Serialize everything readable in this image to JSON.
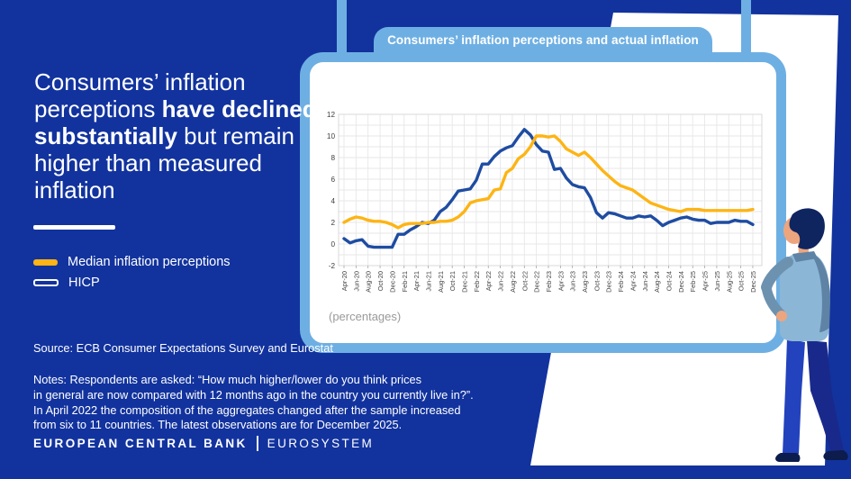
{
  "style_colors": {
    "background": "#12339E",
    "accent_light_blue": "#6EAFE3",
    "line_yellow": "#FDB414",
    "line_blue": "#1E4CA1"
  },
  "left_panel": {
    "heading": {
      "segments": [
        {
          "text": "Consumers’ inflation perceptions ",
          "bold": false
        },
        {
          "text": "have declined substantially",
          "bold": true
        },
        {
          "text": " but remain higher than measured inflation",
          "bold": false
        }
      ]
    },
    "legend": {
      "items": [
        {
          "label": "Median inflation perceptions",
          "swatch": "yellow-filled"
        },
        {
          "label": "HICP",
          "swatch": "white-outline"
        }
      ]
    },
    "source": "Source: ECB Consumer Expectations Survey and Eurostat",
    "notes_lines": [
      "Notes: Respondents are asked: “How much higher/lower do you think prices",
      "in general are now compared with 12 months ago in the country you currently live in?”.",
      "In April 2022 the composition of the aggregates changed after the sample increased",
      "from six to 11 countries. The latest observations are for December 2025."
    ],
    "footer": {
      "org": "EUROPEAN CENTRAL BANK",
      "system": "EUROSYSTEM"
    }
  },
  "chart_card": {
    "title": "Consumers’ inflation perceptions and actual inflation"
  },
  "chart_data": {
    "type": "line",
    "title": "Consumers’ inflation perceptions and actual inflation",
    "unit_note": "(percentages)",
    "x_start": "Apr-20",
    "x_end": "Dec-25",
    "x_frequency": "monthly",
    "categories": [
      "Apr-20",
      "Jun-20",
      "Aug-20",
      "Oct-20",
      "Dec-20",
      "Feb-21",
      "Apr-21",
      "Jun-21",
      "Aug-21",
      "Oct-21",
      "Dec-21",
      "Feb-22",
      "Apr-22",
      "Jun-22",
      "Aug-22",
      "Oct-22",
      "Dec-22",
      "Feb-23",
      "Apr-23",
      "Jun-23",
      "Aug-23",
      "Oct-23",
      "Dec-23",
      "Feb-24",
      "Apr-24",
      "Jun-24",
      "Aug-24",
      "Oct-24",
      "Dec-24",
      "Feb-25",
      "Apr-25",
      "Jun-25",
      "Aug-25",
      "Oct-25",
      "Dec-25"
    ],
    "ylim": [
      -2,
      12
    ],
    "yticks": [
      -2,
      0,
      2,
      4,
      6,
      8,
      10,
      12
    ],
    "grid": true,
    "legend_position": "left-panel",
    "series": [
      {
        "name": "HICP",
        "color": "#1E4CA1",
        "values": [
          0.5,
          0.1,
          0.3,
          0.4,
          -0.2,
          -0.3,
          -0.3,
          -0.3,
          -0.3,
          0.9,
          0.9,
          1.3,
          1.6,
          2.0,
          1.9,
          2.2,
          3.0,
          3.4,
          4.1,
          4.9,
          5.0,
          5.1,
          5.9,
          7.4,
          7.4,
          8.1,
          8.6,
          8.9,
          9.1,
          9.9,
          10.6,
          10.1,
          9.2,
          8.6,
          8.5,
          6.9,
          7.0,
          6.1,
          5.5,
          5.3,
          5.2,
          4.3,
          2.9,
          2.4,
          2.9,
          2.8,
          2.6,
          2.4,
          2.4,
          2.6,
          2.5,
          2.6,
          2.2,
          1.7,
          2.0,
          2.2,
          2.4,
          2.5,
          2.3,
          2.2,
          2.2,
          1.9,
          2.0,
          2.0,
          2.0,
          2.2,
          2.1,
          2.1,
          1.8
        ]
      },
      {
        "name": "Median inflation perceptions",
        "color": "#FDB414",
        "values": [
          2.0,
          2.3,
          2.5,
          2.4,
          2.2,
          2.1,
          2.1,
          2.0,
          1.8,
          1.5,
          1.8,
          1.9,
          1.9,
          1.9,
          2.0,
          2.0,
          2.1,
          2.1,
          2.2,
          2.5,
          3.0,
          3.8,
          4.0,
          4.1,
          4.2,
          5.0,
          5.1,
          6.6,
          7.0,
          7.9,
          8.3,
          9.0,
          10.0,
          10.0,
          9.9,
          10.0,
          9.5,
          8.8,
          8.5,
          8.2,
          8.5,
          8.0,
          7.4,
          6.8,
          6.3,
          5.8,
          5.4,
          5.2,
          5.0,
          4.6,
          4.2,
          3.8,
          3.6,
          3.4,
          3.2,
          3.1,
          3.0,
          3.2,
          3.2,
          3.2,
          3.1,
          3.1,
          3.1,
          3.1,
          3.1,
          3.1,
          3.1,
          3.1,
          3.2
        ]
      }
    ]
  }
}
